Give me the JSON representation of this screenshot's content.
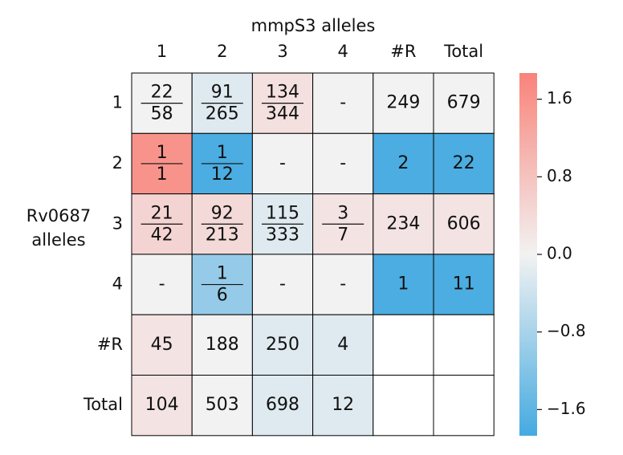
{
  "chart_data": {
    "type": "heatmap",
    "title": "mmpS3 alleles",
    "y_label": [
      "Rv0687",
      "alleles"
    ],
    "columns": [
      "1",
      "2",
      "3",
      "4",
      "#R",
      "Total"
    ],
    "rows": [
      "1",
      "2",
      "3",
      "4",
      "#R",
      "Total"
    ],
    "cells": [
      [
        {
          "value": 0,
          "numerator": 22,
          "denominator": 58
        },
        {
          "value": -0.2,
          "numerator": 91,
          "denominator": 265
        },
        {
          "value": 0.3,
          "numerator": 134,
          "denominator": 344
        },
        {
          "value": 0,
          "label": "-"
        },
        {
          "value": 0,
          "label": 249
        },
        {
          "value": 0,
          "label": 679
        }
      ],
      [
        {
          "value": 1.6,
          "numerator": 1,
          "denominator": 1
        },
        {
          "value": -1.8,
          "numerator": 1,
          "denominator": 12
        },
        {
          "value": 0,
          "label": "-"
        },
        {
          "value": 0,
          "label": "-"
        },
        {
          "value": -1.8,
          "label": 2
        },
        {
          "value": -1.8,
          "label": 22
        }
      ],
      [
        {
          "value": 0.5,
          "numerator": 21,
          "denominator": 42
        },
        {
          "value": 0.4,
          "numerator": 92,
          "denominator": 213
        },
        {
          "value": -0.2,
          "numerator": 115,
          "denominator": 333
        },
        {
          "value": 0.25,
          "numerator": 3,
          "denominator": 7
        },
        {
          "value": 0.25,
          "label": 234
        },
        {
          "value": 0.25,
          "label": 606
        }
      ],
      [
        {
          "value": 0,
          "label": "-"
        },
        {
          "value": -1.0,
          "numerator": 1,
          "denominator": 6
        },
        {
          "value": 0,
          "label": "-"
        },
        {
          "value": 0,
          "label": "-"
        },
        {
          "value": -1.8,
          "label": 1
        },
        {
          "value": -1.8,
          "label": 11
        }
      ],
      [
        {
          "value": 0.25,
          "label": 45
        },
        {
          "value": 0,
          "label": 188
        },
        {
          "value": -0.2,
          "label": 250
        },
        {
          "value": -0.2,
          "label": 4
        },
        {
          "value": null
        },
        {
          "value": null
        }
      ],
      [
        {
          "value": 0.25,
          "label": 104
        },
        {
          "value": 0,
          "label": 503
        },
        {
          "value": -0.2,
          "label": 698
        },
        {
          "value": -0.2,
          "label": 12
        },
        {
          "value": null
        },
        {
          "value": null
        }
      ]
    ],
    "clim": [
      -1.87,
      1.87
    ],
    "cticks": [
      {
        "value": 1.6,
        "label": "1.6"
      },
      0.8,
      {
        "value": 0,
        "label": "0.0"
      },
      {
        "value": -0.8,
        "label": "−0.8"
      },
      {
        "value": -1.6,
        "label": "−1.6"
      }
    ],
    "cmap": [
      "#45aae0",
      "#f2f2f2",
      "#f9837a"
    ]
  }
}
